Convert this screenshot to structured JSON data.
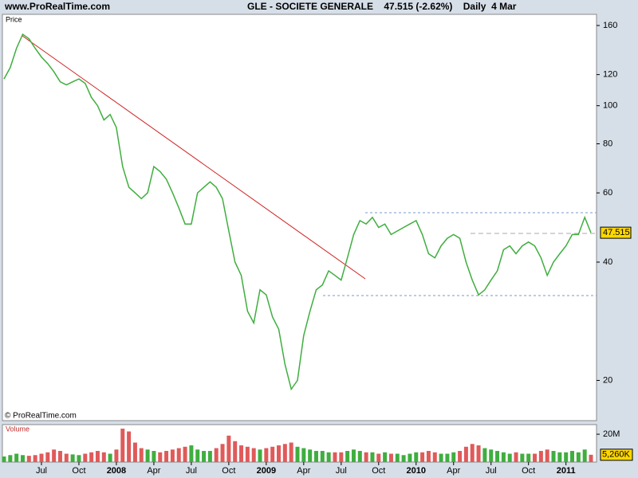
{
  "header": {
    "site": "www.ProRealTime.com",
    "title": "GLE - SOCIETE GENERALE    47.515 (-2.62%)    Daily  4 Mar"
  },
  "copyright": "© ProRealTime.com",
  "chart_data": [
    {
      "type": "line",
      "title": "Price",
      "log_scale": true,
      "color": "#3fae3f",
      "up_color": "#3fae3f",
      "down_color": "#e05a5a",
      "ylim": [
        15.8,
        170.8
      ],
      "yticks": [
        20,
        40,
        60,
        80,
        100,
        120,
        160
      ],
      "series": [
        {
          "name": "GLE",
          "values": [
            117,
            125,
            140,
            152,
            148,
            140,
            133,
            128,
            122,
            115,
            113,
            115,
            117,
            114,
            105,
            100,
            92,
            95,
            88,
            70,
            62,
            60,
            58,
            60,
            70,
            68,
            65,
            60,
            55,
            50,
            50,
            60,
            62,
            64,
            62,
            58,
            48,
            40,
            37,
            30,
            28,
            34,
            33,
            29,
            27,
            22,
            19,
            20,
            26,
            30,
            34,
            35,
            38,
            37,
            36,
            41,
            47,
            51,
            50,
            52,
            49,
            50,
            47,
            48,
            49,
            50,
            51,
            47,
            42,
            41,
            44,
            46,
            47,
            46,
            40,
            36,
            33,
            34,
            36,
            38,
            43,
            44,
            42,
            44,
            45,
            44,
            41,
            37,
            40,
            42,
            44,
            47,
            47,
            52,
            47.515
          ]
        }
      ]
    },
    {
      "type": "bar",
      "title": "Volume",
      "ylim": [
        0,
        26900000
      ],
      "yticks": [
        {
          "value": 20000000,
          "label": "20M"
        }
      ],
      "categories": [
        null,
        null,
        null,
        null,
        null,
        null,
        "Jul",
        null,
        null,
        null,
        null,
        null,
        "Oct",
        null,
        null,
        null,
        null,
        null,
        "2008",
        null,
        null,
        null,
        null,
        null,
        "Apr",
        null,
        null,
        null,
        null,
        null,
        "Jul",
        null,
        null,
        null,
        null,
        null,
        "Oct",
        null,
        null,
        null,
        null,
        null,
        "2009",
        null,
        null,
        null,
        null,
        null,
        "Apr",
        null,
        null,
        null,
        null,
        null,
        "Jul",
        null,
        null,
        null,
        null,
        null,
        "Oct",
        null,
        null,
        null,
        null,
        null,
        "2010",
        null,
        null,
        null,
        null,
        null,
        "Apr",
        null,
        null,
        null,
        null,
        null,
        "Jul",
        null,
        null,
        null,
        null,
        null,
        "Oct",
        null,
        null,
        null,
        null,
        null,
        "2011",
        null,
        null,
        null,
        null
      ],
      "values": [
        4000000,
        5000000,
        6000000,
        5000000,
        4500000,
        5000000,
        6000000,
        7000000,
        9000000,
        8000000,
        6000000,
        5500000,
        5000000,
        6000000,
        7000000,
        8000000,
        7000000,
        6000000,
        9000000,
        24000000,
        22000000,
        14000000,
        10000000,
        9000000,
        8000000,
        7000000,
        8000000,
        9000000,
        10000000,
        11000000,
        12000000,
        9000000,
        8000000,
        8000000,
        10000000,
        13000000,
        19000000,
        15000000,
        12000000,
        11000000,
        10000000,
        9000000,
        10000000,
        11000000,
        12000000,
        13000000,
        14000000,
        11000000,
        10000000,
        9000000,
        8000000,
        8000000,
        7000000,
        7000000,
        7000000,
        8000000,
        9000000,
        8000000,
        7000000,
        7000000,
        6000000,
        7000000,
        6000000,
        6000000,
        5000000,
        6000000,
        7000000,
        7000000,
        8000000,
        7000000,
        6000000,
        6000000,
        7000000,
        8000000,
        11000000,
        13000000,
        12000000,
        10000000,
        9000000,
        8000000,
        7000000,
        6000000,
        7000000,
        6000000,
        6000000,
        6000000,
        8000000,
        9000000,
        8000000,
        7000000,
        7000000,
        8000000,
        7000000,
        9000000,
        5260000
      ],
      "value_labels": [
        null,
        null,
        null,
        null,
        null,
        null,
        null,
        null,
        null,
        null,
        null,
        null,
        null,
        null,
        null,
        null,
        null,
        null,
        null,
        null,
        null,
        null,
        null,
        null,
        null,
        null,
        null,
        null,
        null,
        null,
        null,
        null,
        null,
        null,
        null,
        null,
        null,
        null,
        null,
        null,
        null,
        null,
        null,
        null,
        null,
        null,
        null,
        null,
        null,
        null,
        null,
        null,
        null,
        null,
        null,
        null,
        null,
        null,
        null,
        null,
        null,
        null,
        null,
        null,
        null,
        null,
        null,
        null,
        null,
        null,
        null,
        null,
        null,
        null,
        null,
        null,
        null,
        null,
        null,
        null,
        null,
        null,
        null,
        null,
        null,
        null,
        null,
        null,
        null,
        null,
        null,
        null,
        null,
        null,
        "5,260K"
      ]
    }
  ]
}
